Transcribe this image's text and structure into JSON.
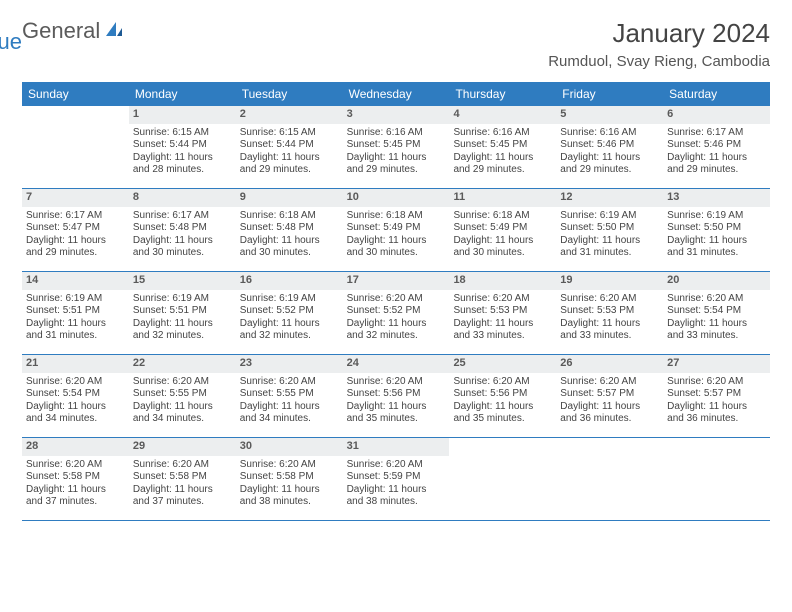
{
  "logo": {
    "word1": "General",
    "word2": "Blue"
  },
  "header": {
    "month_title": "January 2024",
    "location": "Rumduol, Svay Rieng, Cambodia"
  },
  "calendar": {
    "day_headers": [
      "Sunday",
      "Monday",
      "Tuesday",
      "Wednesday",
      "Thursday",
      "Friday",
      "Saturday"
    ],
    "header_bg": "#2f7cc0",
    "header_text": "#ffffff",
    "daynum_bg": "#eceeef",
    "border_color": "#2f7cc0",
    "weeks": [
      [
        {
          "day": "",
          "sunrise": "",
          "sunset": "",
          "daylight": ""
        },
        {
          "day": "1",
          "sunrise": "Sunrise: 6:15 AM",
          "sunset": "Sunset: 5:44 PM",
          "daylight": "Daylight: 11 hours and 28 minutes."
        },
        {
          "day": "2",
          "sunrise": "Sunrise: 6:15 AM",
          "sunset": "Sunset: 5:44 PM",
          "daylight": "Daylight: 11 hours and 29 minutes."
        },
        {
          "day": "3",
          "sunrise": "Sunrise: 6:16 AM",
          "sunset": "Sunset: 5:45 PM",
          "daylight": "Daylight: 11 hours and 29 minutes."
        },
        {
          "day": "4",
          "sunrise": "Sunrise: 6:16 AM",
          "sunset": "Sunset: 5:45 PM",
          "daylight": "Daylight: 11 hours and 29 minutes."
        },
        {
          "day": "5",
          "sunrise": "Sunrise: 6:16 AM",
          "sunset": "Sunset: 5:46 PM",
          "daylight": "Daylight: 11 hours and 29 minutes."
        },
        {
          "day": "6",
          "sunrise": "Sunrise: 6:17 AM",
          "sunset": "Sunset: 5:46 PM",
          "daylight": "Daylight: 11 hours and 29 minutes."
        }
      ],
      [
        {
          "day": "7",
          "sunrise": "Sunrise: 6:17 AM",
          "sunset": "Sunset: 5:47 PM",
          "daylight": "Daylight: 11 hours and 29 minutes."
        },
        {
          "day": "8",
          "sunrise": "Sunrise: 6:17 AM",
          "sunset": "Sunset: 5:48 PM",
          "daylight": "Daylight: 11 hours and 30 minutes."
        },
        {
          "day": "9",
          "sunrise": "Sunrise: 6:18 AM",
          "sunset": "Sunset: 5:48 PM",
          "daylight": "Daylight: 11 hours and 30 minutes."
        },
        {
          "day": "10",
          "sunrise": "Sunrise: 6:18 AM",
          "sunset": "Sunset: 5:49 PM",
          "daylight": "Daylight: 11 hours and 30 minutes."
        },
        {
          "day": "11",
          "sunrise": "Sunrise: 6:18 AM",
          "sunset": "Sunset: 5:49 PM",
          "daylight": "Daylight: 11 hours and 30 minutes."
        },
        {
          "day": "12",
          "sunrise": "Sunrise: 6:19 AM",
          "sunset": "Sunset: 5:50 PM",
          "daylight": "Daylight: 11 hours and 31 minutes."
        },
        {
          "day": "13",
          "sunrise": "Sunrise: 6:19 AM",
          "sunset": "Sunset: 5:50 PM",
          "daylight": "Daylight: 11 hours and 31 minutes."
        }
      ],
      [
        {
          "day": "14",
          "sunrise": "Sunrise: 6:19 AM",
          "sunset": "Sunset: 5:51 PM",
          "daylight": "Daylight: 11 hours and 31 minutes."
        },
        {
          "day": "15",
          "sunrise": "Sunrise: 6:19 AM",
          "sunset": "Sunset: 5:51 PM",
          "daylight": "Daylight: 11 hours and 32 minutes."
        },
        {
          "day": "16",
          "sunrise": "Sunrise: 6:19 AM",
          "sunset": "Sunset: 5:52 PM",
          "daylight": "Daylight: 11 hours and 32 minutes."
        },
        {
          "day": "17",
          "sunrise": "Sunrise: 6:20 AM",
          "sunset": "Sunset: 5:52 PM",
          "daylight": "Daylight: 11 hours and 32 minutes."
        },
        {
          "day": "18",
          "sunrise": "Sunrise: 6:20 AM",
          "sunset": "Sunset: 5:53 PM",
          "daylight": "Daylight: 11 hours and 33 minutes."
        },
        {
          "day": "19",
          "sunrise": "Sunrise: 6:20 AM",
          "sunset": "Sunset: 5:53 PM",
          "daylight": "Daylight: 11 hours and 33 minutes."
        },
        {
          "day": "20",
          "sunrise": "Sunrise: 6:20 AM",
          "sunset": "Sunset: 5:54 PM",
          "daylight": "Daylight: 11 hours and 33 minutes."
        }
      ],
      [
        {
          "day": "21",
          "sunrise": "Sunrise: 6:20 AM",
          "sunset": "Sunset: 5:54 PM",
          "daylight": "Daylight: 11 hours and 34 minutes."
        },
        {
          "day": "22",
          "sunrise": "Sunrise: 6:20 AM",
          "sunset": "Sunset: 5:55 PM",
          "daylight": "Daylight: 11 hours and 34 minutes."
        },
        {
          "day": "23",
          "sunrise": "Sunrise: 6:20 AM",
          "sunset": "Sunset: 5:55 PM",
          "daylight": "Daylight: 11 hours and 34 minutes."
        },
        {
          "day": "24",
          "sunrise": "Sunrise: 6:20 AM",
          "sunset": "Sunset: 5:56 PM",
          "daylight": "Daylight: 11 hours and 35 minutes."
        },
        {
          "day": "25",
          "sunrise": "Sunrise: 6:20 AM",
          "sunset": "Sunset: 5:56 PM",
          "daylight": "Daylight: 11 hours and 35 minutes."
        },
        {
          "day": "26",
          "sunrise": "Sunrise: 6:20 AM",
          "sunset": "Sunset: 5:57 PM",
          "daylight": "Daylight: 11 hours and 36 minutes."
        },
        {
          "day": "27",
          "sunrise": "Sunrise: 6:20 AM",
          "sunset": "Sunset: 5:57 PM",
          "daylight": "Daylight: 11 hours and 36 minutes."
        }
      ],
      [
        {
          "day": "28",
          "sunrise": "Sunrise: 6:20 AM",
          "sunset": "Sunset: 5:58 PM",
          "daylight": "Daylight: 11 hours and 37 minutes."
        },
        {
          "day": "29",
          "sunrise": "Sunrise: 6:20 AM",
          "sunset": "Sunset: 5:58 PM",
          "daylight": "Daylight: 11 hours and 37 minutes."
        },
        {
          "day": "30",
          "sunrise": "Sunrise: 6:20 AM",
          "sunset": "Sunset: 5:58 PM",
          "daylight": "Daylight: 11 hours and 38 minutes."
        },
        {
          "day": "31",
          "sunrise": "Sunrise: 6:20 AM",
          "sunset": "Sunset: 5:59 PM",
          "daylight": "Daylight: 11 hours and 38 minutes."
        },
        {
          "day": "",
          "sunrise": "",
          "sunset": "",
          "daylight": ""
        },
        {
          "day": "",
          "sunrise": "",
          "sunset": "",
          "daylight": ""
        },
        {
          "day": "",
          "sunrise": "",
          "sunset": "",
          "daylight": ""
        }
      ]
    ]
  }
}
